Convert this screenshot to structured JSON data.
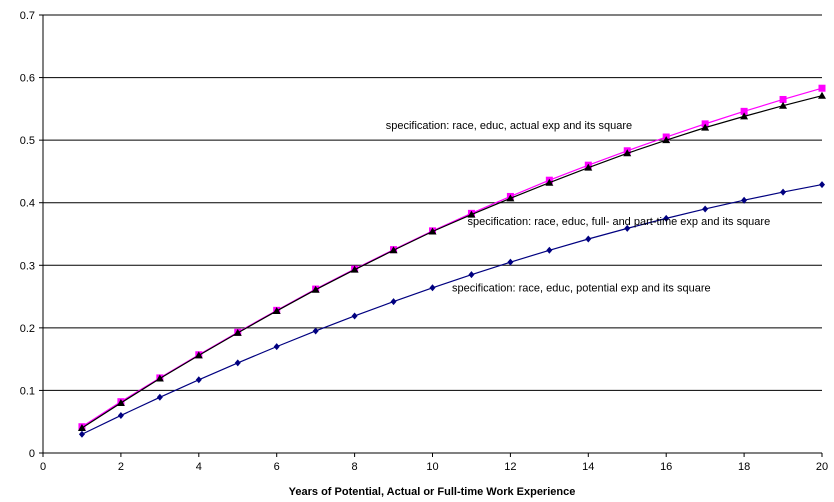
{
  "chart_data": {
    "type": "line",
    "title": "",
    "xlabel": "Years of Potential, Actual or Full-time Work Experience",
    "ylabel": "",
    "xlim": [
      0,
      20
    ],
    "ylim": [
      0,
      0.7
    ],
    "x_ticks": [
      "0",
      "2",
      "4",
      "6",
      "8",
      "10",
      "12",
      "14",
      "16",
      "18",
      "20"
    ],
    "y_ticks": [
      "0",
      "0.1",
      "0.2",
      "0.3",
      "0.4",
      "0.5",
      "0.6",
      "0.7"
    ],
    "grid": "horizontal",
    "legend": "none",
    "x": [
      1,
      2,
      3,
      4,
      5,
      6,
      7,
      8,
      9,
      10,
      11,
      12,
      13,
      14,
      15,
      16,
      17,
      18,
      19,
      20
    ],
    "series": [
      {
        "marker": "square",
        "color": "#ff00ff",
        "line_color": "#ff00ff",
        "values": [
          0.042,
          0.082,
          0.12,
          0.157,
          0.193,
          0.228,
          0.262,
          0.294,
          0.325,
          0.355,
          0.383,
          0.41,
          0.436,
          0.46,
          0.483,
          0.505,
          0.526,
          0.546,
          0.565,
          0.583
        ]
      },
      {
        "marker": "triangle",
        "color": "#000000",
        "line_color": "#000000",
        "values": [
          0.04,
          0.08,
          0.119,
          0.156,
          0.192,
          0.227,
          0.261,
          0.293,
          0.324,
          0.354,
          0.381,
          0.407,
          0.432,
          0.456,
          0.479,
          0.5,
          0.52,
          0.538,
          0.555,
          0.571
        ]
      },
      {
        "marker": "diamond",
        "color": "#000080",
        "line_color": "#000080",
        "values": [
          0.03,
          0.06,
          0.089,
          0.117,
          0.144,
          0.17,
          0.195,
          0.219,
          0.242,
          0.264,
          0.285,
          0.305,
          0.324,
          0.342,
          0.359,
          0.375,
          0.39,
          0.404,
          0.417,
          0.429
        ]
      }
    ],
    "annotations": [
      {
        "text": "specification: race, educ, actual exp and its square",
        "x": 8.8,
        "y": 0.518
      },
      {
        "text": "specification: race, educ, full- and part-time exp and its square",
        "x": 10.9,
        "y": 0.364
      },
      {
        "text": "specification: race, educ, potential exp and its square",
        "x": 10.5,
        "y": 0.258
      }
    ]
  }
}
